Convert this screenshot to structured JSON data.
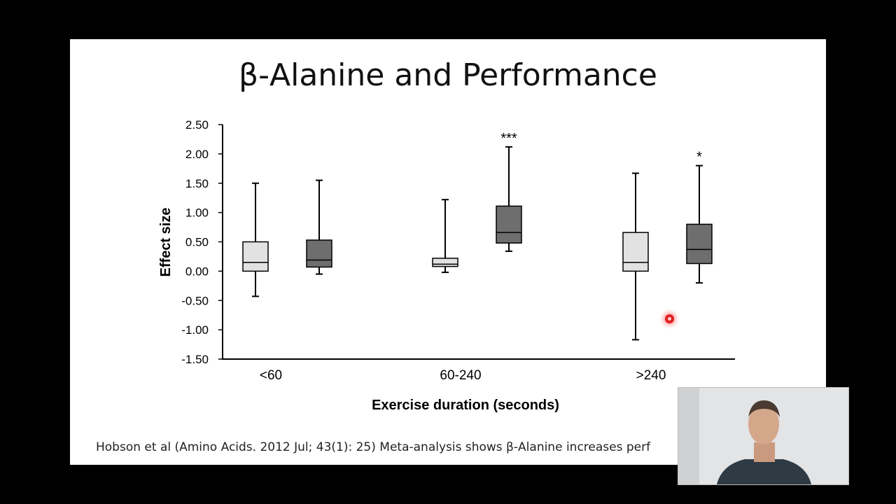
{
  "slide": {
    "title": "β-Alanine and Performance",
    "caption": "Hobson et al (Amino Acids. 2012 Jul; 43(1): 25) Meta-analysis shows β-Alanine increases perf"
  },
  "chart_data": {
    "type": "box",
    "ylabel": "Effect size",
    "xlabel": "Exercise duration (seconds)",
    "ylim": [
      -1.5,
      2.5
    ],
    "y_ticks": [
      "2.50",
      "2.00",
      "1.50",
      "1.00",
      "0.50",
      "0.00",
      "-0.50",
      "-1.00",
      "-1.50"
    ],
    "y_tick_values": [
      2.5,
      2.0,
      1.5,
      1.0,
      0.5,
      0.0,
      -0.5,
      -1.0,
      -1.5
    ],
    "categories": [
      "<60",
      "60-240",
      ">240"
    ],
    "series": [
      {
        "color": "#e2e2e2",
        "boxes": [
          {
            "category": "<60",
            "min": -0.43,
            "q1": 0.0,
            "median": 0.15,
            "q3": 0.5,
            "max": 1.5
          },
          {
            "category": "60-240",
            "min": -0.02,
            "q1": 0.08,
            "median": 0.12,
            "q3": 0.22,
            "max": 1.22
          },
          {
            "category": ">240",
            "min": -1.17,
            "q1": 0.0,
            "median": 0.15,
            "q3": 0.66,
            "max": 1.67
          }
        ]
      },
      {
        "color": "#6e6e6e",
        "boxes": [
          {
            "category": "<60",
            "min": -0.05,
            "q1": 0.07,
            "median": 0.19,
            "q3": 0.53,
            "max": 1.55,
            "sig": ""
          },
          {
            "category": "60-240",
            "min": 0.34,
            "q1": 0.48,
            "median": 0.66,
            "q3": 1.11,
            "max": 2.12,
            "sig": "***"
          },
          {
            "category": ">240",
            "min": -0.2,
            "q1": 0.13,
            "median": 0.37,
            "q3": 0.8,
            "max": 1.8,
            "sig": "*"
          }
        ]
      }
    ]
  }
}
